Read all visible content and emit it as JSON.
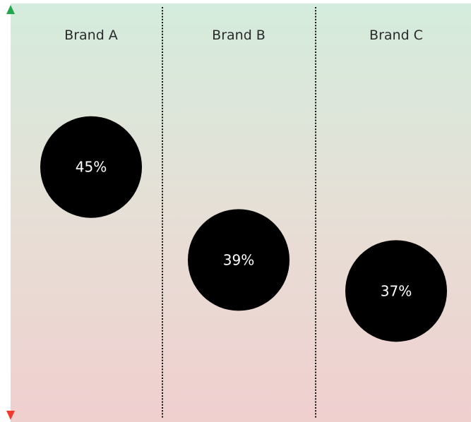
{
  "chart_data": {
    "type": "scatter",
    "categories": [
      "Brand A",
      "Brand B",
      "Brand C"
    ],
    "values": [
      45,
      39,
      37
    ],
    "value_labels": [
      "45%",
      "39%",
      "37%"
    ],
    "title": "",
    "xlabel": "",
    "ylabel": "",
    "ylim": [
      31,
      50
    ],
    "grid": false,
    "legend": "none",
    "colors": {
      "marker": "#000000",
      "marker_text": "#ffffff",
      "top_background": "#d4ecdd",
      "bottom_background": "#f0cfcf",
      "arrow_top": "#22a84a",
      "arrow_bottom": "#f23a2c",
      "divider": "#111111"
    }
  }
}
